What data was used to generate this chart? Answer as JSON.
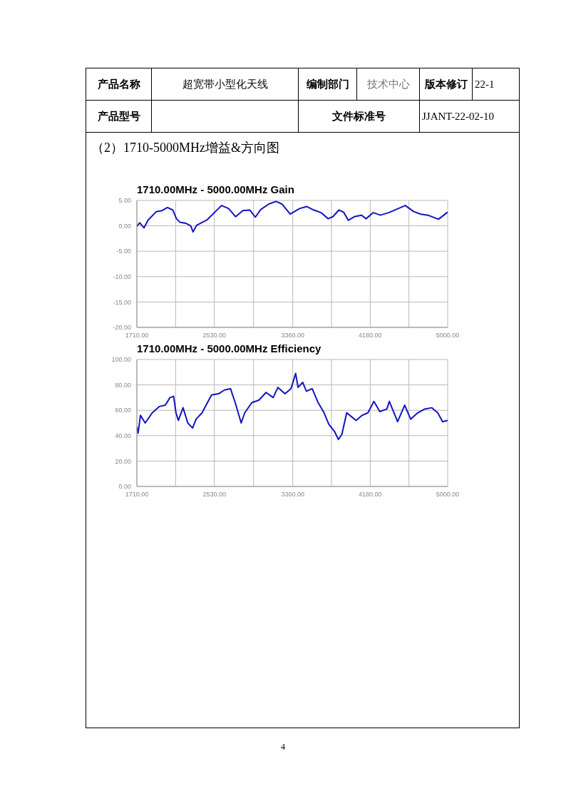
{
  "chart_data": [
    {
      "type": "line",
      "title": "1710.00MHz - 5000.00MHz Gain",
      "xlim": [
        1710,
        5000
      ],
      "xticks": [
        {
          "value": 1710,
          "label": "1710.00"
        },
        {
          "value": 2120,
          "label": null
        },
        {
          "value": 2530,
          "label": "2530.00"
        },
        {
          "value": 2945,
          "label": null
        },
        {
          "value": 3360,
          "label": "3360.00"
        },
        {
          "value": 3770,
          "label": null
        },
        {
          "value": 4180,
          "label": "4180.00"
        },
        {
          "value": 4590,
          "label": null
        },
        {
          "value": 5000,
          "label": "5000.00"
        }
      ],
      "ylim": [
        -20,
        5
      ],
      "yticks": [
        {
          "value": -20,
          "label": "-20.00"
        },
        {
          "value": -15,
          "label": "-15.00"
        },
        {
          "value": -10,
          "label": "-10.00"
        },
        {
          "value": -5,
          "label": "-5.00"
        },
        {
          "value": 0,
          "label": "0.00"
        },
        {
          "value": 5,
          "label": "5.00"
        }
      ],
      "grid": true,
      "legend": false,
      "marker": "none",
      "annotations": [
        "产品名称",
        "超宽带小型化天线",
        "编制部门",
        "技术中心",
        "版本修订",
        "22-1",
        "产品型号",
        "文件标准号",
        "JJANT-22-02-10",
        "（2）1710-5000MHz增益&方向图",
        "4"
      ],
      "x": [
        1710,
        1740,
        1785,
        1828,
        1916,
        1978,
        2034,
        2091,
        2129,
        2167,
        2230,
        2280,
        2305,
        2342,
        2455,
        2606,
        2681,
        2756,
        2832,
        2907,
        2964,
        3020,
        3107,
        3183,
        3245,
        3333,
        3433,
        3509,
        3584,
        3659,
        3735,
        3785,
        3848,
        3898,
        3948,
        4012,
        4087,
        4137,
        4212,
        4288,
        4376,
        4464,
        4552,
        4640,
        4715,
        4790,
        4903,
        5000
      ],
      "series": [
        {
          "color": "#1414c0",
          "values": [
            -0.1,
            0.6,
            -0.4,
            1.1,
            2.8,
            3.0,
            3.6,
            3.1,
            1.4,
            0.7,
            0.5,
            0.0,
            -1.2,
            0.1,
            1.2,
            4.0,
            3.4,
            1.8,
            3.0,
            3.1,
            1.7,
            3.2,
            4.3,
            4.8,
            4.3,
            2.3,
            3.4,
            3.8,
            3.1,
            2.6,
            1.4,
            1.8,
            3.1,
            2.7,
            1.1,
            1.8,
            2.1,
            1.4,
            2.6,
            2.1,
            2.6,
            3.3,
            4.0,
            2.8,
            2.3,
            2.1,
            1.3,
            2.7
          ]
        }
      ]
    },
    {
      "type": "line",
      "title": "1710.00MHz - 5000.00MHz Efficiency",
      "xlim": [
        1710,
        5000
      ],
      "xticks": [
        {
          "value": 1710,
          "label": "1710.00"
        },
        {
          "value": 2120,
          "label": null
        },
        {
          "value": 2530,
          "label": "2530.00"
        },
        {
          "value": 2945,
          "label": null
        },
        {
          "value": 3360,
          "label": "3360.00"
        },
        {
          "value": 3770,
          "label": null
        },
        {
          "value": 4180,
          "label": "4180.00"
        },
        {
          "value": 4590,
          "label": null
        },
        {
          "value": 5000,
          "label": "5000.00"
        }
      ],
      "ylim": [
        0,
        100
      ],
      "yticks": [
        {
          "value": 0,
          "label": "0.00"
        },
        {
          "value": 20,
          "label": "20.00"
        },
        {
          "value": 40,
          "label": "40.00"
        },
        {
          "value": 60,
          "label": "60.00"
        },
        {
          "value": 80,
          "label": "80.00"
        },
        {
          "value": 100,
          "label": "100.00"
        }
      ],
      "grid": true,
      "legend": false,
      "marker": "none",
      "x": [
        1710,
        1723,
        1748,
        1798,
        1873,
        1949,
        2011,
        2061,
        2099,
        2124,
        2149,
        2199,
        2249,
        2300,
        2337,
        2400,
        2500,
        2575,
        2638,
        2701,
        2751,
        2814,
        2852,
        2927,
        3002,
        3077,
        3153,
        3203,
        3278,
        3341,
        3391,
        3416,
        3466,
        3504,
        3566,
        3629,
        3692,
        3742,
        3805,
        3843,
        3880,
        3931,
        3981,
        4031,
        4094,
        4156,
        4219,
        4282,
        4357,
        4382,
        4470,
        4545,
        4608,
        4683,
        4758,
        4833,
        4895,
        4946,
        5000
      ],
      "series": [
        {
          "color": "#1414c0",
          "values": [
            47,
            42,
            56,
            50,
            58,
            63,
            64,
            70,
            71,
            58,
            52,
            62,
            50,
            46,
            53,
            58,
            72,
            73,
            76,
            77,
            66,
            50,
            58,
            66,
            68,
            74,
            70,
            78,
            73,
            77,
            89,
            78,
            82,
            75,
            77,
            66,
            58,
            49,
            43,
            37,
            41,
            58,
            55,
            52,
            56,
            58,
            67,
            59,
            61,
            67,
            51,
            64,
            53,
            58,
            61,
            62,
            58,
            51,
            52
          ]
        }
      ]
    }
  ]
}
